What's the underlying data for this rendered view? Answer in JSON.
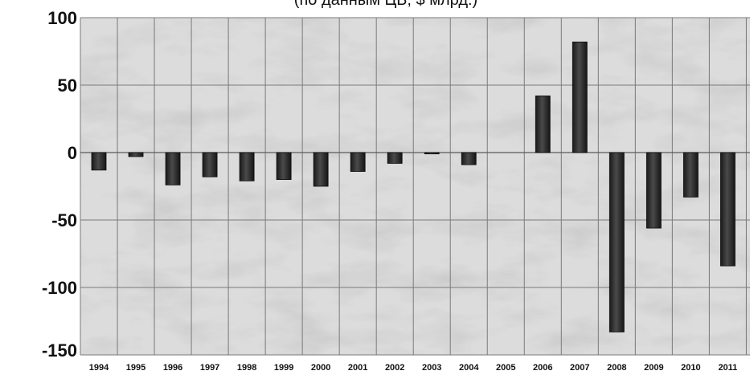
{
  "chart_data": {
    "type": "bar",
    "title": "(по данным ЦБ, $ млрд.)",
    "xlabel": "",
    "ylabel": "",
    "categories": [
      "1994",
      "1995",
      "1996",
      "1997",
      "1998",
      "1999",
      "2000",
      "2001",
      "2002",
      "2003",
      "2004",
      "2005",
      "2006",
      "2007",
      "2008",
      "2009",
      "2010",
      "2011"
    ],
    "values": [
      -13,
      -3,
      -24,
      -18,
      -21,
      -20,
      -25,
      -14,
      -8,
      -1,
      -9,
      0,
      42,
      82,
      -133,
      -56,
      -33,
      -84
    ],
    "ylim": [
      -150,
      100
    ],
    "yticks": [
      "100",
      "50",
      "0",
      "-50",
      "-100",
      "-150"
    ],
    "grid": true,
    "legend": "none",
    "colors": {
      "bar": "#2e2e2e",
      "grid": "#7a7a7a",
      "background": "#d6d6d6"
    }
  }
}
